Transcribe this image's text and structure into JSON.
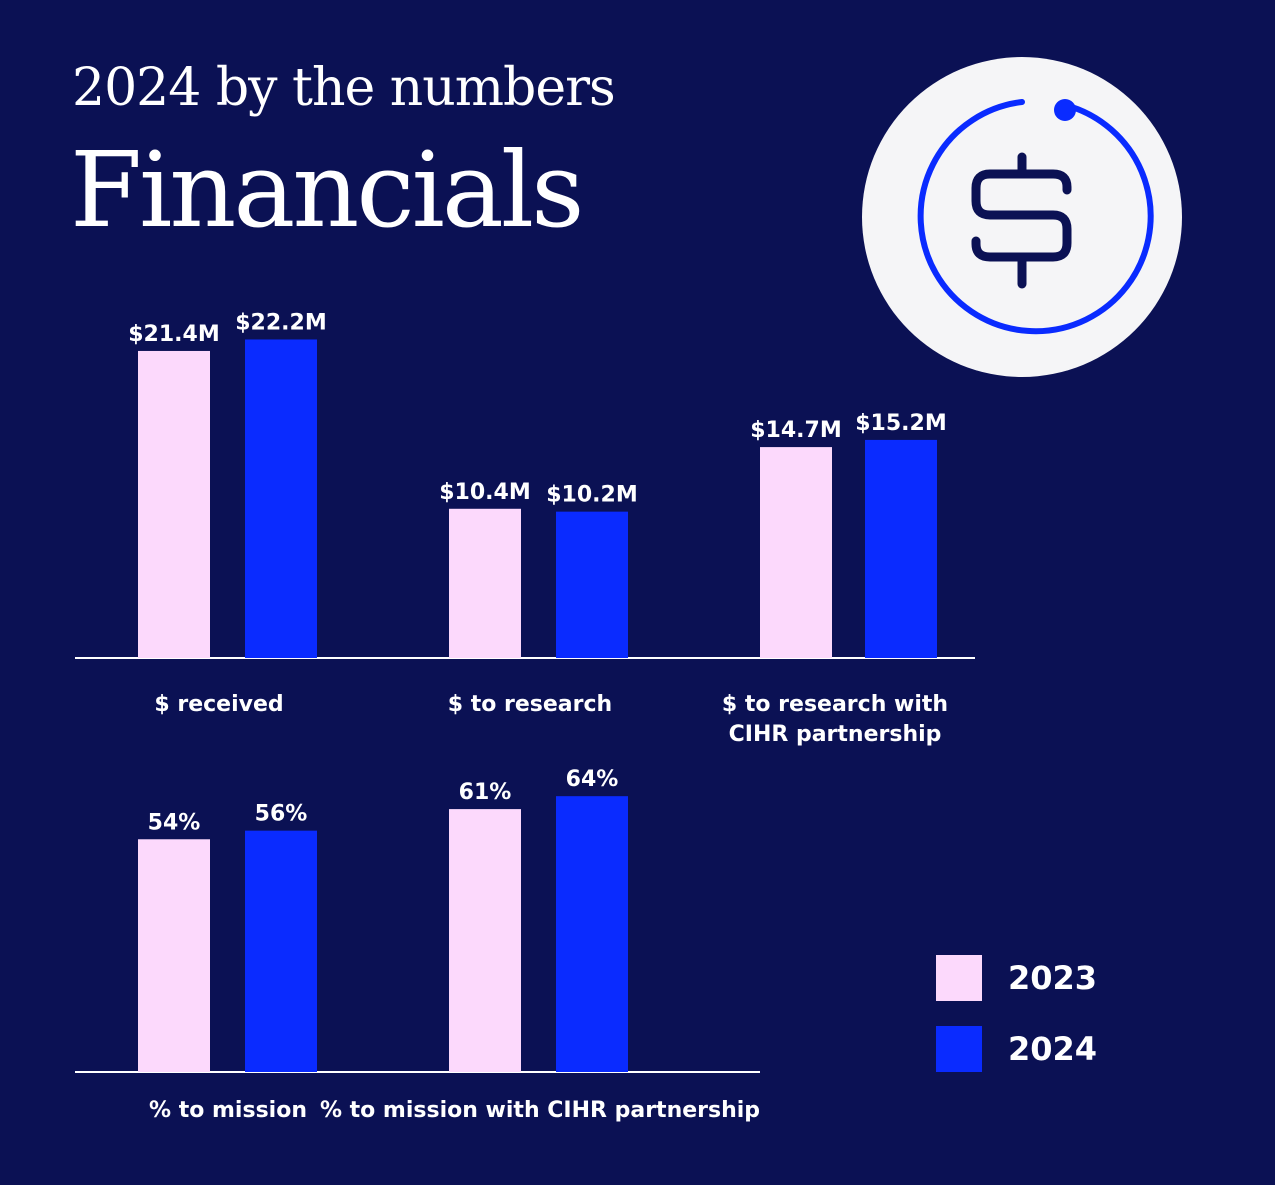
{
  "header": {
    "kicker": "2024 by the numbers",
    "title": "Financials"
  },
  "icon": {
    "name": "dollar-sign-icon",
    "ring_color": "#0a2bff",
    "bg_color": "#f5f5f7",
    "glyph_color": "#0b1154"
  },
  "colors": {
    "background": "#0b1154",
    "series_2023": "#fcd9fc",
    "series_2024": "#0a2bff",
    "axis": "#ffffff"
  },
  "legend": {
    "items": [
      {
        "label": "2023",
        "color": "#fcd9fc"
      },
      {
        "label": "2024",
        "color": "#0a2bff"
      }
    ]
  },
  "chart_data": [
    {
      "type": "bar",
      "categories": [
        [
          "$ received"
        ],
        [
          "$ to research"
        ],
        [
          "$ to research with",
          "CIHR partnership"
        ]
      ],
      "series": [
        {
          "name": "2023",
          "values": [
            21.4,
            10.4,
            14.7
          ],
          "labels": [
            "$21.4M",
            "$10.4M",
            "$14.7M"
          ]
        },
        {
          "name": "2024",
          "values": [
            22.2,
            10.2,
            15.2
          ],
          "labels": [
            "$22.2M",
            "$10.2M",
            "$15.2M"
          ]
        }
      ],
      "unit": "$M",
      "ylim": [
        0,
        27.6
      ],
      "grid": false,
      "legend": "right"
    },
    {
      "type": "bar",
      "categories": [
        [
          "% to mission"
        ],
        [
          "% to mission with CIHR partnership"
        ]
      ],
      "series": [
        {
          "name": "2023",
          "values": [
            54,
            61
          ],
          "labels": [
            "54%",
            "61%"
          ]
        },
        {
          "name": "2024",
          "values": [
            56,
            64
          ],
          "labels": [
            "56%",
            "64%"
          ]
        }
      ],
      "unit": "%",
      "ylim": [
        0,
        71
      ],
      "grid": false,
      "legend": "right"
    }
  ]
}
